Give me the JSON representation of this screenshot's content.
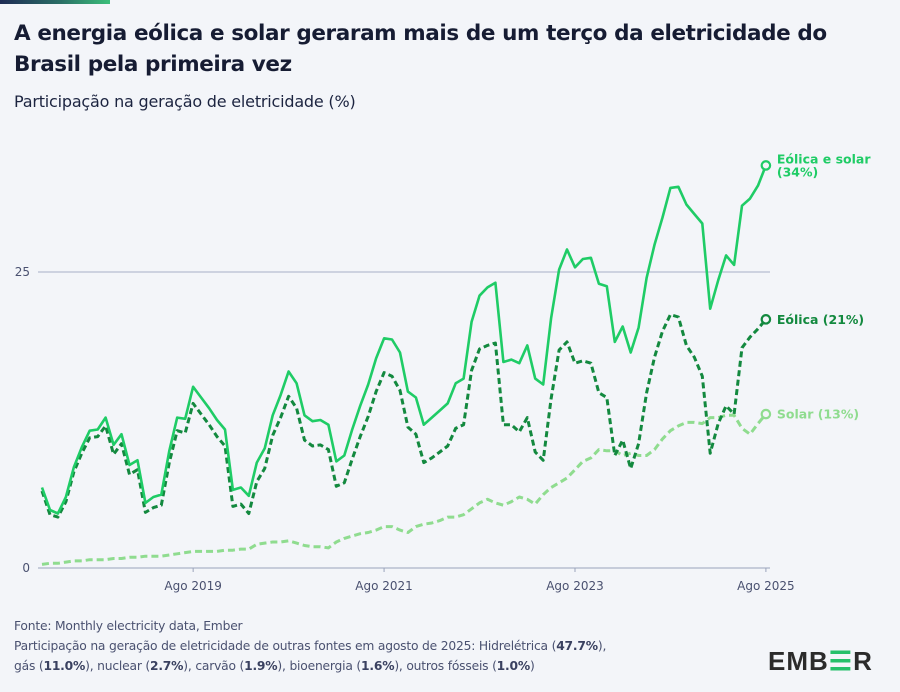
{
  "header": {
    "title": "A energia eólica e solar geraram mais de um terço da eletricidade do Brasil pela primeira vez",
    "subtitle": "Participação na geração de eletricidade (%)"
  },
  "footer": {
    "source": "Fonte: Monthly electricity data, Ember",
    "note_intro": "Participação na geração de eletricidade de outras fontes em agosto de 2025: Hidrelétrica (",
    "others": [
      {
        "name": "Hidrelétrica",
        "value": "47.7%"
      },
      {
        "name": "gás",
        "value": "11.0%"
      },
      {
        "name": "nuclear",
        "value": "2.7%"
      },
      {
        "name": "carvão",
        "value": "1.9%"
      },
      {
        "name": "bioenergia",
        "value": "1.6%"
      },
      {
        "name": "outros fósseis",
        "value": "1.0%"
      }
    ]
  },
  "logo": {
    "text_pre": "EMB",
    "text_e": "E",
    "text_post": "R",
    "accent": "#26c06a"
  },
  "chart_data": {
    "type": "line",
    "title": "A energia eólica e solar geraram mais de um terço da eletricidade do Brasil pela primeira vez",
    "ylabel": "Participação na geração de eletricidade (%)",
    "xlabel": "",
    "x_start": "2018-01",
    "x_end": "2025-08",
    "frequency": "monthly",
    "x_ticks": [
      "Ago 2019",
      "Ago 2021",
      "Ago 2023",
      "Ago 2025"
    ],
    "x_tick_months": [
      "2019-08",
      "2021-08",
      "2023-08",
      "2025-08"
    ],
    "y_ticks": [
      0,
      25
    ],
    "ylim": [
      0,
      36
    ],
    "grid": "horizontal at 25",
    "legend": "end-of-line labels",
    "series": [
      {
        "name": "Eólica e solar",
        "end_label": "Eólica e solar",
        "end_value": "(34%)",
        "color": "#1fcc66",
        "style": "solid",
        "values": [
          6.8,
          4.9,
          4.6,
          6.0,
          8.5,
          10.2,
          11.6,
          11.7,
          12.7,
          10.4,
          11.3,
          8.7,
          9.1,
          5.5,
          6.0,
          6.2,
          9.9,
          12.7,
          12.6,
          15.3,
          14.4,
          13.5,
          12.5,
          11.7,
          6.6,
          6.8,
          6.1,
          8.9,
          10.1,
          12.9,
          14.6,
          16.6,
          15.6,
          12.9,
          12.4,
          12.5,
          12.1,
          9.0,
          9.5,
          11.7,
          13.7,
          15.5,
          17.7,
          19.4,
          19.3,
          18.2,
          14.9,
          14.4,
          12.1,
          12.7,
          13.3,
          13.9,
          15.6,
          16.0,
          20.8,
          23.0,
          23.7,
          24.1,
          17.4,
          17.6,
          17.3,
          18.8,
          16.0,
          15.5,
          21.1,
          25.2,
          26.9,
          25.4,
          26.1,
          26.2,
          24.0,
          23.8,
          19.1,
          20.4,
          18.2,
          20.3,
          24.5,
          27.3,
          29.6,
          32.1,
          32.2,
          30.7,
          29.9,
          29.1,
          21.9,
          24.3,
          26.4,
          25.6,
          30.6,
          31.2,
          32.3,
          34.0
        ]
      },
      {
        "name": "Eólica",
        "end_label": "Eólica (21%)",
        "color": "#13893f",
        "style": "dashed",
        "values": [
          6.5,
          4.5,
          4.3,
          5.6,
          8.1,
          9.7,
          11.0,
          11.1,
          12.0,
          9.6,
          10.5,
          7.9,
          8.3,
          4.7,
          5.1,
          5.3,
          8.9,
          11.6,
          11.4,
          13.9,
          13.0,
          12.1,
          11.1,
          10.3,
          5.2,
          5.4,
          4.6,
          7.3,
          8.4,
          11.2,
          12.7,
          14.5,
          13.5,
          10.8,
          10.3,
          10.4,
          10.0,
          6.9,
          7.2,
          9.2,
          11.1,
          12.8,
          14.9,
          16.5,
          16.2,
          15.0,
          11.9,
          11.3,
          8.9,
          9.3,
          9.8,
          10.3,
          11.8,
          12.1,
          16.7,
          18.5,
          18.8,
          19.0,
          12.1,
          12.1,
          11.5,
          12.7,
          9.8,
          9.1,
          14.3,
          18.4,
          19.1,
          17.3,
          17.5,
          17.3,
          14.8,
          14.4,
          9.5,
          10.8,
          8.4,
          10.5,
          14.8,
          17.8,
          20.0,
          21.4,
          21.2,
          18.8,
          17.8,
          16.2,
          9.7,
          12.2,
          13.7,
          13.0,
          18.6,
          19.5,
          20.2,
          21.0
        ]
      },
      {
        "name": "Solar",
        "end_label": "Solar (13%)",
        "color": "#8fdc8f",
        "style": "dashed",
        "values": [
          0.3,
          0.4,
          0.4,
          0.5,
          0.6,
          0.6,
          0.7,
          0.7,
          0.7,
          0.8,
          0.8,
          0.9,
          0.9,
          1.0,
          1.0,
          1.0,
          1.1,
          1.2,
          1.3,
          1.4,
          1.4,
          1.4,
          1.4,
          1.5,
          1.5,
          1.6,
          1.6,
          2.0,
          2.1,
          2.2,
          2.2,
          2.3,
          2.1,
          1.9,
          1.8,
          1.8,
          1.7,
          2.2,
          2.5,
          2.7,
          2.9,
          3.0,
          3.2,
          3.5,
          3.5,
          3.2,
          3.0,
          3.5,
          3.7,
          3.8,
          4.0,
          4.3,
          4.3,
          4.5,
          5.0,
          5.5,
          5.8,
          5.5,
          5.3,
          5.6,
          6.0,
          5.8,
          5.4,
          6.2,
          6.8,
          7.2,
          7.6,
          8.3,
          9.0,
          9.3,
          10.0,
          9.9,
          9.9,
          9.5,
          9.7,
          9.5,
          9.5,
          10.0,
          10.9,
          11.6,
          12.0,
          12.3,
          12.3,
          12.2,
          12.7,
          12.7,
          12.9,
          12.9,
          11.8,
          11.3,
          12.2,
          13.0
        ]
      }
    ]
  }
}
